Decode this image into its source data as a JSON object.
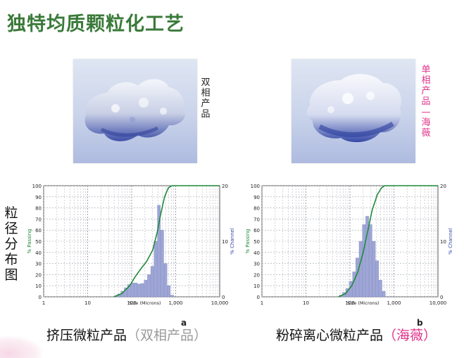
{
  "title": "独特均质颗粒化工艺",
  "left_photo_label": [
    "双",
    "相",
    "产",
    "品"
  ],
  "right_photo_label": [
    "单",
    "相",
    "产",
    "品",
    "—",
    "海",
    "薇"
  ],
  "side_label": [
    "粒",
    "径",
    "分",
    "布",
    "图"
  ],
  "captions": {
    "left_main": "挤压微粒产品",
    "left_paren": "（双相产品）",
    "right_main": "粉碎离心微粒产品",
    "right_paren_open": "（",
    "right_highlight": "海薇",
    "right_paren_close": "）",
    "letter_a": "a",
    "letter_b": "b"
  },
  "colors": {
    "title": "#3a7a3a",
    "pink": "#e0338a",
    "curve": "#1f8a3a",
    "bars": "#9ea6d6"
  },
  "chart_data": [
    {
      "type": "bar",
      "xlabel": "Size (Microns)",
      "ylabel_left": "% Passing",
      "ylabel_right": "% Channel",
      "x_scale": "log",
      "xlim": [
        1,
        10000
      ],
      "ylim_left": [
        0,
        100
      ],
      "ylim_right": [
        0,
        20
      ],
      "x_ticks": [
        "1",
        "10",
        "100",
        "1,000",
        "10,000"
      ],
      "y_ticks_left": [
        "0",
        "10",
        "20",
        "30",
        "40",
        "50",
        "60",
        "70",
        "80",
        "90",
        "100"
      ],
      "y_ticks_right": [
        "0",
        "10",
        "20"
      ],
      "bars": {
        "x": [
          44,
          52,
          62,
          74,
          88,
          105,
          125,
          148,
          176,
          209,
          249,
          296,
          352,
          419,
          498,
          592,
          704,
          837
        ],
        "channel": [
          0.2,
          0.5,
          1.0,
          1.6,
          2.2,
          2.5,
          2.5,
          2.3,
          2.4,
          3.0,
          4.0,
          5.5,
          10.0,
          16.5,
          12.0,
          6.0,
          2.0,
          0.3
        ]
      },
      "passing_curve": {
        "x": [
          40,
          60,
          90,
          120,
          160,
          220,
          300,
          380,
          460,
          560,
          680,
          820,
          10000
        ],
        "y": [
          0,
          3,
          10,
          18,
          25,
          32,
          42,
          58,
          75,
          90,
          98,
          100,
          100
        ]
      }
    },
    {
      "type": "bar",
      "xlabel": "Size (Microns)",
      "ylabel_left": "% Passing",
      "ylabel_right": "% Channel",
      "x_scale": "log",
      "xlim": [
        1,
        10000
      ],
      "ylim_left": [
        0,
        100
      ],
      "ylim_right": [
        0,
        20
      ],
      "x_ticks": [
        "1",
        "10",
        "100",
        "1,000",
        "10,000"
      ],
      "y_ticks_left": [
        "0",
        "10",
        "20",
        "30",
        "40",
        "50",
        "60",
        "70",
        "80",
        "90",
        "100"
      ],
      "y_ticks_right": [
        "0",
        "10",
        "20"
      ],
      "bars": {
        "x": [
          62,
          74,
          88,
          105,
          125,
          148,
          176,
          209,
          249,
          296,
          352,
          419,
          498,
          592
        ],
        "channel": [
          0.3,
          0.8,
          1.5,
          2.8,
          4.5,
          7.0,
          10.0,
          13.0,
          14.5,
          13.0,
          10.0,
          6.5,
          3.0,
          1.0
        ]
      },
      "passing_curve": {
        "x": [
          55,
          80,
          110,
          150,
          200,
          250,
          320,
          420,
          520,
          620,
          700,
          10000
        ],
        "y": [
          0,
          3,
          10,
          22,
          40,
          58,
          78,
          92,
          98,
          100,
          100,
          100
        ]
      }
    }
  ]
}
